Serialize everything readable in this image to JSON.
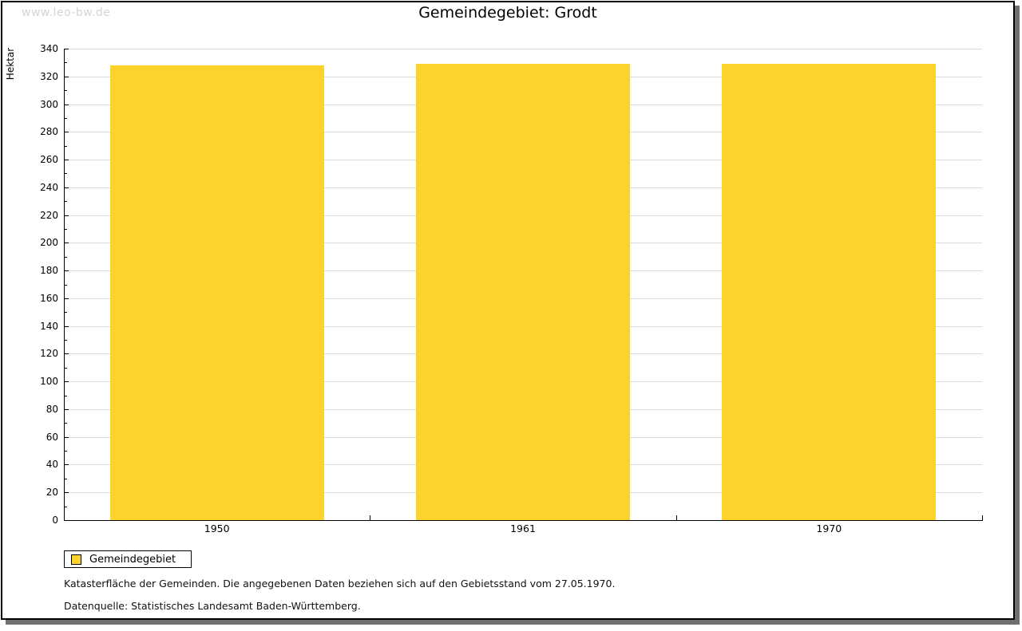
{
  "page": {
    "watermark": "www.leo-bw.de",
    "title": "Gemeindegebiet: Grodt"
  },
  "chart_data": {
    "type": "bar",
    "title": "Gemeindegebiet: Grodt",
    "categories": [
      "1950",
      "1961",
      "1970"
    ],
    "series": [
      {
        "name": "Gemeindegebiet",
        "values": [
          328,
          329,
          329
        ]
      }
    ],
    "xlabel": "",
    "ylabel": "Hektar",
    "ylim": [
      0,
      340
    ],
    "ytick_step": 20,
    "ytick_minor_step": 10,
    "grid": "horizontal",
    "bar_color": "#fcd32d",
    "gridline_color": "#dcdcdc",
    "legend_position": "bottom-left"
  },
  "legend": {
    "items": [
      {
        "label": "Gemeindegebiet",
        "color": "#fcd32d"
      }
    ]
  },
  "footnotes": [
    "Katasterfläche der Gemeinden. Die angegebenen Daten beziehen sich auf den Gebietsstand vom 27.05.1970.",
    "Datenquelle: Statistisches Landesamt Baden-Württemberg."
  ]
}
